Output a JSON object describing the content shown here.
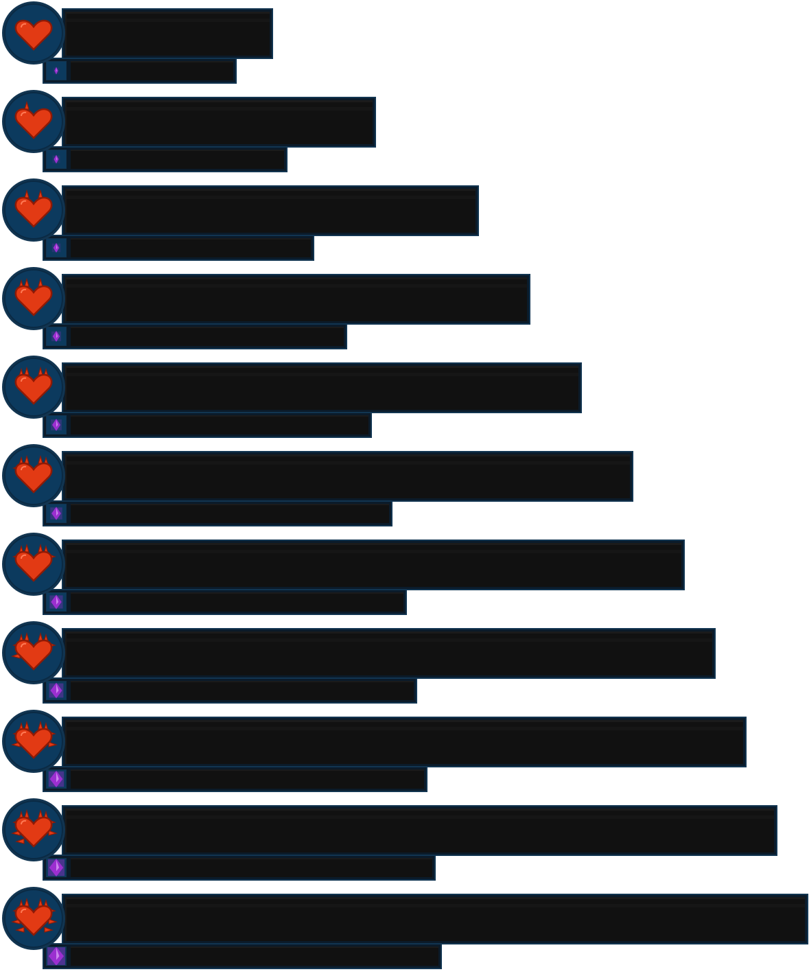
{
  "theme": {
    "frame_color": "#0c3a5e",
    "frame_dark": "#123551",
    "bar_fill": "#111111",
    "heart_color": "#e23a14",
    "heart_shadow": "#8e1a06",
    "gem_color": "#9b2fd0"
  },
  "icons": {
    "heart": "heart-icon",
    "gem": "mana-gem-icon"
  },
  "tiers": [
    {
      "tier": 1,
      "health_bar_fill": 0.0,
      "mana_bar_fill": 0.0,
      "heart_spikes": 0,
      "gem_level": 1
    },
    {
      "tier": 2,
      "health_bar_fill": 0.0,
      "mana_bar_fill": 0.0,
      "heart_spikes": 1,
      "gem_level": 2
    },
    {
      "tier": 3,
      "health_bar_fill": 0.0,
      "mana_bar_fill": 0.0,
      "heart_spikes": 2,
      "gem_level": 3
    },
    {
      "tier": 4,
      "health_bar_fill": 0.0,
      "mana_bar_fill": 0.0,
      "heart_spikes": 3,
      "gem_level": 4
    },
    {
      "tier": 5,
      "health_bar_fill": 0.0,
      "mana_bar_fill": 0.0,
      "heart_spikes": 4,
      "gem_level": 5
    },
    {
      "tier": 6,
      "health_bar_fill": 0.0,
      "mana_bar_fill": 0.0,
      "heart_spikes": 5,
      "gem_level": 6
    },
    {
      "tier": 7,
      "health_bar_fill": 0.0,
      "mana_bar_fill": 0.0,
      "heart_spikes": 6,
      "gem_level": 7
    },
    {
      "tier": 8,
      "health_bar_fill": 0.0,
      "mana_bar_fill": 0.0,
      "heart_spikes": 7,
      "gem_level": 8
    },
    {
      "tier": 9,
      "health_bar_fill": 0.0,
      "mana_bar_fill": 0.0,
      "heart_spikes": 8,
      "gem_level": 9
    },
    {
      "tier": 10,
      "health_bar_fill": 0.0,
      "mana_bar_fill": 0.0,
      "heart_spikes": 9,
      "gem_level": 10
    },
    {
      "tier": 11,
      "health_bar_fill": 0.0,
      "mana_bar_fill": 0.0,
      "heart_spikes": 10,
      "gem_level": 11
    }
  ]
}
